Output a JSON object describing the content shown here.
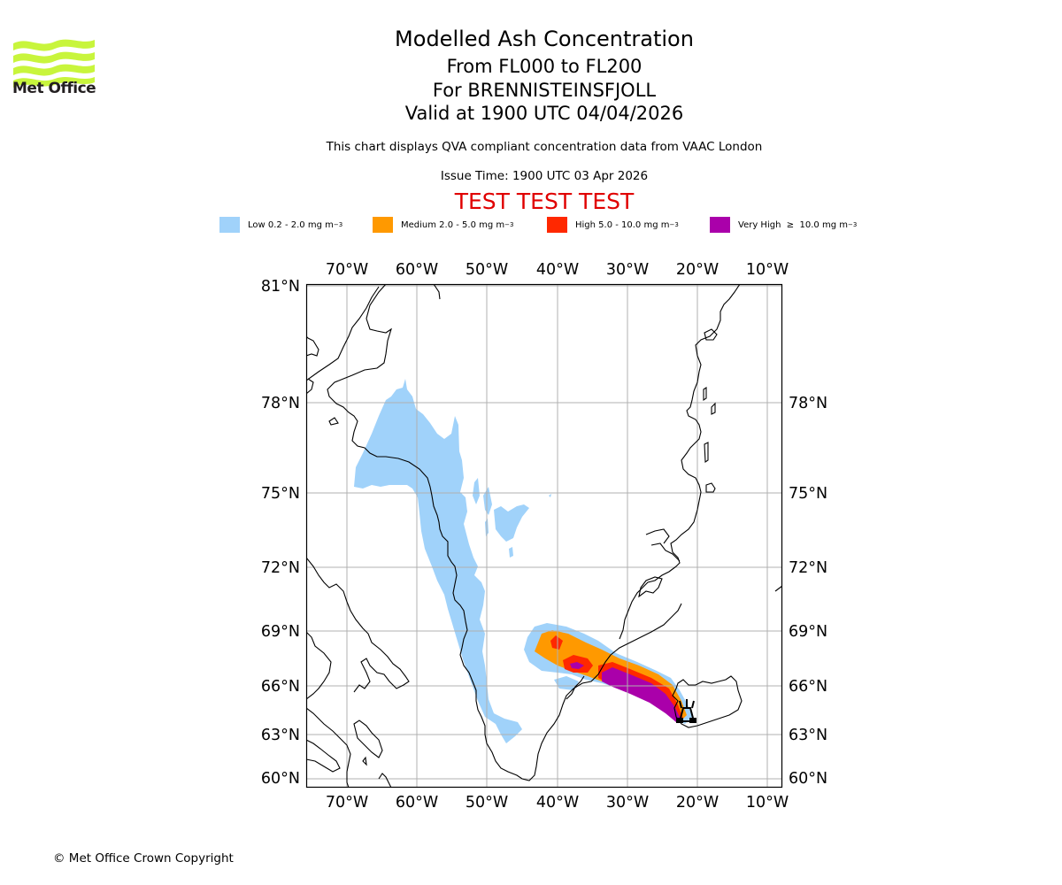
{
  "header": {
    "title": "Modelled Ash Concentration",
    "levels": "From FL000 to FL200",
    "volcano": "For BRENNISTEINSFJOLL",
    "valid": "Valid at 1900 UTC 04/04/2026",
    "subtitle": "This chart displays QVA compliant concentration data from VAAC London",
    "issue_time": "Issue Time: 1900 UTC 03 Apr 2026",
    "test_banner": "TEST TEST TEST"
  },
  "logo": {
    "text": "Met Office",
    "icon": "met-office-waves-logo",
    "color": "#c8f53c"
  },
  "legend": [
    {
      "label": "Low 0.2 - 2.0 mg m",
      "exp": "−3",
      "color": "#a0d2fa"
    },
    {
      "label": "Medium 2.0 - 5.0 mg m",
      "exp": "−3",
      "color": "#ff9900"
    },
    {
      "label": "High 5.0 - 10.0 mg m",
      "exp": "−3",
      "color": "#ff2800"
    },
    {
      "label": "Very High  ≥  10.0 mg m",
      "exp": "−3",
      "color": "#aa00aa"
    }
  ],
  "map": {
    "lon_ticks": [
      "70°W",
      "60°W",
      "50°W",
      "40°W",
      "30°W",
      "20°W",
      "10°W"
    ],
    "lat_ticks": [
      "81°N",
      "78°N",
      "75°N",
      "72°N",
      "69°N",
      "66°N",
      "63°N",
      "60°N"
    ],
    "lat_ticks_right": [
      "78°N",
      "75°N",
      "72°N",
      "69°N",
      "66°N",
      "63°N",
      "60°N"
    ],
    "gridline_color": "#b0b0b0",
    "coastline_color": "#000000",
    "volcano_marker": "volcano-symbol"
  },
  "footer": {
    "copyright": "© Met Office Crown Copyright"
  }
}
